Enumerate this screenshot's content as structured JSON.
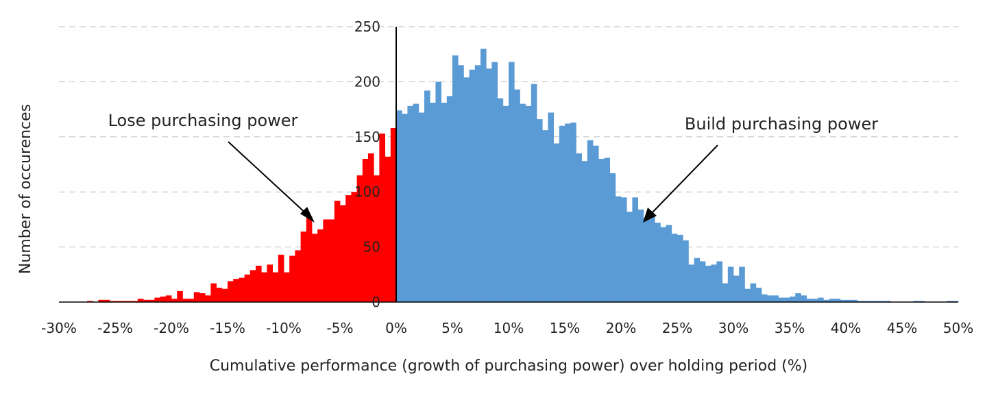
{
  "chart_data": {
    "type": "bar",
    "xlabel": "Cumulative performance (growth of purchasing power) over holding period (%)",
    "ylabel": "Number of occurences",
    "xlim": [
      -30,
      50
    ],
    "ylim": [
      0,
      250
    ],
    "x_ticks": [
      "-30%",
      "-25%",
      "-20%",
      "-15%",
      "-10%",
      "-5%",
      "0%",
      "5%",
      "10%",
      "15%",
      "20%",
      "25%",
      "30%",
      "35%",
      "40%",
      "45%",
      "50%"
    ],
    "y_ticks": [
      "0",
      "50",
      "100",
      "150",
      "200",
      "250"
    ],
    "grid": "horizontal dashed",
    "bin_width": 0.5,
    "colors": {
      "negative": "#ff0000",
      "positive": "#5b9bd5"
    },
    "annotations": [
      {
        "text": "Lose purchasing power",
        "target": [
          -7.5,
          78
        ]
      },
      {
        "text": "Build purchasing power",
        "target": [
          22.0,
          70
        ]
      }
    ],
    "series": [
      {
        "x": [
          -27.25,
          -26.75,
          -26.25,
          -25.75,
          -25.25,
          -24.75,
          -24.25,
          -23.75,
          -23.25,
          -22.75,
          -22.25,
          -21.75,
          -21.25,
          -20.75,
          -20.25,
          -19.75,
          -19.25,
          -18.75,
          -18.25,
          -17.75,
          -17.25,
          -16.75,
          -16.25,
          -15.75,
          -15.25,
          -14.75,
          -14.25,
          -13.75,
          -13.25,
          -12.75,
          -12.25,
          -11.75,
          -11.25,
          -10.75,
          -10.25,
          -9.75,
          -9.25,
          -8.75,
          -8.25,
          -7.75,
          -7.25,
          -6.75,
          -6.25,
          -5.75,
          -5.25,
          -4.75,
          -4.25,
          -3.75,
          -3.25,
          -2.75,
          -2.25,
          -1.75,
          -1.25,
          -0.75,
          -0.25
        ],
        "values": [
          1,
          0,
          2,
          2,
          1,
          1,
          1,
          1,
          1,
          3,
          2,
          2,
          4,
          5,
          6,
          3,
          10,
          3,
          3,
          9,
          8,
          6,
          17,
          13,
          12,
          19,
          21,
          22,
          25,
          29,
          33,
          27,
          34,
          27,
          43,
          27,
          42,
          47,
          64,
          78,
          62,
          66,
          75,
          75,
          92,
          88,
          97,
          100,
          115,
          130,
          135,
          115,
          153,
          132,
          158
        ]
      },
      {
        "x": [
          0.25,
          0.75,
          1.25,
          1.75,
          2.25,
          2.75,
          3.25,
          3.75,
          4.25,
          4.75,
          5.25,
          5.75,
          6.25,
          6.75,
          7.25,
          7.75,
          8.25,
          8.75,
          9.25,
          9.75,
          10.25,
          10.75,
          11.25,
          11.75,
          12.25,
          12.75,
          13.25,
          13.75,
          14.25,
          14.75,
          15.25,
          15.75,
          16.25,
          16.75,
          17.25,
          17.75,
          18.25,
          18.75,
          19.25,
          19.75,
          20.25,
          20.75,
          21.25,
          21.75,
          22.25,
          22.75,
          23.25,
          23.75,
          24.25,
          24.75,
          25.25,
          25.75,
          26.25,
          26.75,
          27.25,
          27.75,
          28.25,
          28.75,
          29.25,
          29.75,
          30.25,
          30.75,
          31.25,
          31.75,
          32.25,
          32.75,
          33.25,
          33.75,
          34.25,
          34.75,
          35.25,
          35.75,
          36.25,
          36.75,
          37.25,
          37.75,
          38.25,
          38.75,
          39.25,
          39.75,
          40.25,
          40.75,
          41.25,
          41.75,
          42.25,
          42.75,
          43.25,
          43.75,
          44.25,
          44.75,
          45.25,
          45.75,
          46.25,
          46.75,
          47.25,
          47.75,
          48.25,
          48.75,
          49.25,
          49.75
        ],
        "values": [
          174,
          171,
          178,
          180,
          172,
          192,
          181,
          200,
          181,
          187,
          224,
          215,
          204,
          211,
          215,
          230,
          212,
          218,
          185,
          178,
          218,
          193,
          180,
          178,
          198,
          166,
          156,
          172,
          144,
          160,
          162,
          163,
          135,
          128,
          147,
          142,
          130,
          131,
          117,
          96,
          95,
          82,
          95,
          84,
          76,
          78,
          72,
          68,
          70,
          62,
          61,
          56,
          34,
          40,
          37,
          33,
          34,
          37,
          17,
          32,
          24,
          32,
          12,
          17,
          13,
          7,
          6,
          6,
          4,
          4,
          5,
          8,
          6,
          3,
          3,
          4,
          2,
          3,
          3,
          2,
          2,
          2,
          1,
          1,
          1,
          1,
          1,
          1,
          0,
          0,
          0,
          0,
          1,
          1,
          0,
          0,
          0,
          0,
          1,
          1
        ]
      }
    ]
  }
}
